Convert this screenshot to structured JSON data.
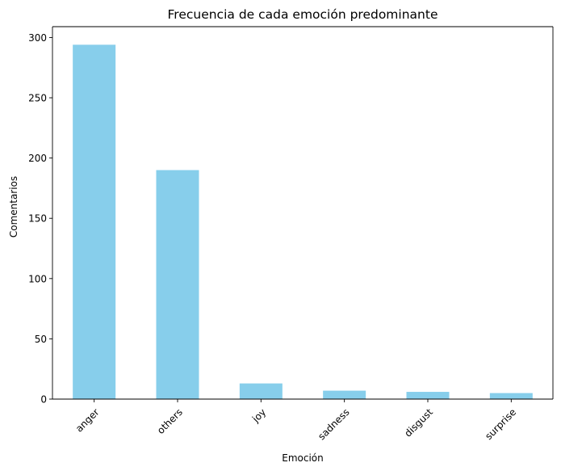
{
  "chart_data": {
    "type": "bar",
    "title": "Frecuencia de cada emoción predominante",
    "xlabel": "Emoción",
    "ylabel": "Comentarios",
    "categories": [
      "anger",
      "others",
      "joy",
      "sadness",
      "disgust",
      "surprise"
    ],
    "values": [
      294,
      190,
      13,
      7,
      6,
      5
    ],
    "ylim": [
      0,
      309
    ],
    "yticks": [
      0,
      50,
      100,
      150,
      200,
      250,
      300
    ],
    "xtick_rotation": 45,
    "bar_color": "#87ceeb",
    "grid": false,
    "legend": null
  }
}
